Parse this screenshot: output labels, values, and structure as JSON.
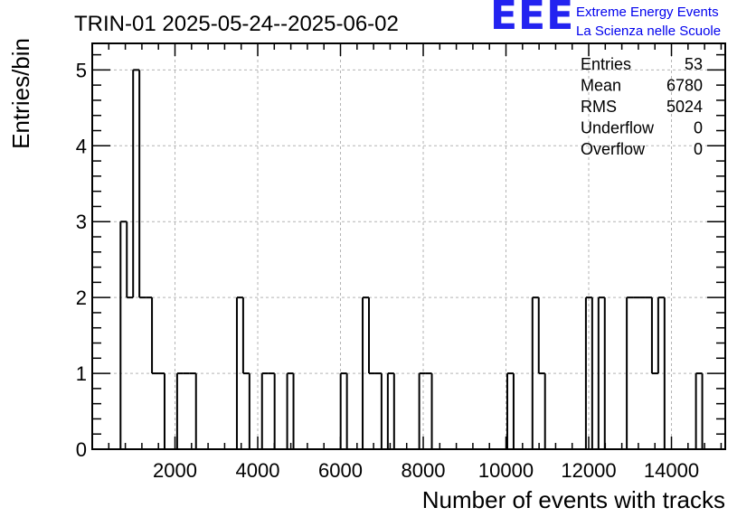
{
  "logo": {
    "mark": "EEE",
    "line1": "Extreme Energy Events",
    "line2": "La Scienza nelle Scuole",
    "color": "#0000ee"
  },
  "chart_data": {
    "type": "histogram",
    "title": "TRIN-01 2025-05-24--2025-06-02",
    "xlabel": "Number of events with tracks",
    "ylabel": "Entries/bin",
    "xlim": [
      0,
      15300
    ],
    "ylim": [
      0,
      5.35
    ],
    "bin_width": 152,
    "x_ticks": [
      2000,
      4000,
      6000,
      8000,
      10000,
      12000,
      14000
    ],
    "y_ticks": [
      0,
      1,
      2,
      3,
      4,
      5
    ],
    "grid": true,
    "line_color": "#000000",
    "bins": [
      {
        "x": 684,
        "y": 3
      },
      {
        "x": 836,
        "y": 2
      },
      {
        "x": 988,
        "y": 5
      },
      {
        "x": 1140,
        "y": 2
      },
      {
        "x": 1292,
        "y": 2
      },
      {
        "x": 1444,
        "y": 1
      },
      {
        "x": 1596,
        "y": 1
      },
      {
        "x": 2052,
        "y": 1
      },
      {
        "x": 2204,
        "y": 1
      },
      {
        "x": 2356,
        "y": 1
      },
      {
        "x": 3496,
        "y": 2
      },
      {
        "x": 3648,
        "y": 1
      },
      {
        "x": 4104,
        "y": 1
      },
      {
        "x": 4256,
        "y": 1
      },
      {
        "x": 4712,
        "y": 1
      },
      {
        "x": 6004,
        "y": 1
      },
      {
        "x": 6536,
        "y": 2
      },
      {
        "x": 6688,
        "y": 1
      },
      {
        "x": 6840,
        "y": 1
      },
      {
        "x": 7144,
        "y": 1
      },
      {
        "x": 7904,
        "y": 1
      },
      {
        "x": 8056,
        "y": 1
      },
      {
        "x": 10032,
        "y": 1
      },
      {
        "x": 10640,
        "y": 2
      },
      {
        "x": 10792,
        "y": 1
      },
      {
        "x": 11932,
        "y": 2
      },
      {
        "x": 12236,
        "y": 2
      },
      {
        "x": 12920,
        "y": 2
      },
      {
        "x": 13072,
        "y": 2
      },
      {
        "x": 13224,
        "y": 2
      },
      {
        "x": 13376,
        "y": 2
      },
      {
        "x": 13528,
        "y": 1
      },
      {
        "x": 13680,
        "y": 2
      },
      {
        "x": 14592,
        "y": 1
      }
    ],
    "stats": [
      {
        "label": "Entries",
        "value": "53"
      },
      {
        "label": "Mean",
        "value": "6780"
      },
      {
        "label": "RMS",
        "value": "5024"
      },
      {
        "label": "Underflow",
        "value": "0"
      },
      {
        "label": "Overflow",
        "value": "0"
      }
    ]
  }
}
